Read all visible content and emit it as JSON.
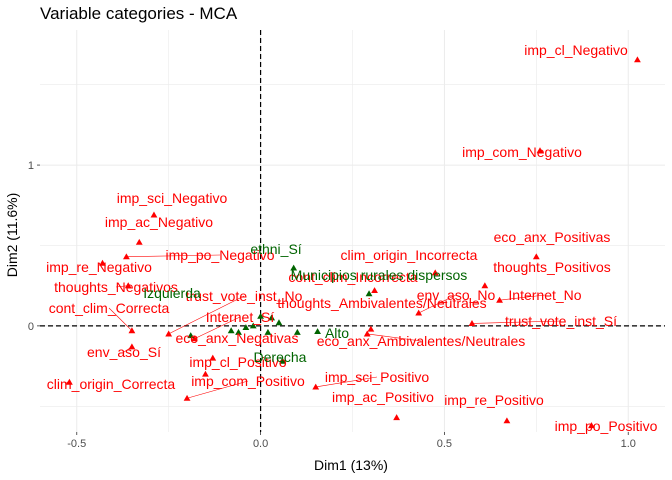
{
  "chart_data": {
    "type": "scatter",
    "title": "Variable categories - MCA",
    "xlabel": "Dim1 (13%)",
    "ylabel": "Dim2 (11.6%)",
    "xlim": [
      -0.6,
      1.1
    ],
    "ylim": [
      -0.66,
      1.84
    ],
    "x_ticks": [
      -0.5,
      0.0,
      0.5,
      1.0
    ],
    "x_tick_labels": [
      "-0.5",
      "0.0",
      "0.5",
      "1.0"
    ],
    "y_ticks": [
      0,
      1
    ],
    "y_tick_labels": [
      "0",
      "1"
    ],
    "grid": true,
    "reference_lines": {
      "x": 0,
      "y": 0
    },
    "colors": {
      "red": "#ff0000",
      "green": "#006400"
    },
    "points": [
      {
        "label": "imp_cl_Negativo",
        "x": 1.025,
        "y": 1.655,
        "color": "red"
      },
      {
        "label": "imp_com_Negativo",
        "x": 0.76,
        "y": 1.09,
        "color": "red"
      },
      {
        "label": "imp_sci_Negativo",
        "x": -0.29,
        "y": 0.69,
        "color": "red"
      },
      {
        "label": "imp_ac_Negativo",
        "x": -0.33,
        "y": 0.52,
        "color": "red"
      },
      {
        "label": "imp_po_Negativo",
        "x": -0.365,
        "y": 0.43,
        "color": "red"
      },
      {
        "label": "imp_re_Negativo",
        "x": -0.43,
        "y": 0.39,
        "color": "red"
      },
      {
        "label": "thoughts_Negativos",
        "x": -0.36,
        "y": 0.25,
        "color": "red"
      },
      {
        "label": "cont_clim_Correcta",
        "x": -0.35,
        "y": -0.03,
        "color": "red"
      },
      {
        "label": "env_aso_Sí",
        "x": -0.35,
        "y": -0.13,
        "color": "red"
      },
      {
        "label": "clim_origin_Correcta",
        "x": -0.52,
        "y": -0.35,
        "color": "red"
      },
      {
        "label": "trust_vote_inst_No",
        "x": -0.25,
        "y": -0.05,
        "color": "red"
      },
      {
        "label": "Internet_Sí",
        "x": -0.18,
        "y": -0.08,
        "color": "red"
      },
      {
        "label": "eco_anx_Negativas",
        "x": -0.13,
        "y": -0.2,
        "color": "red"
      },
      {
        "label": "imp_cl_Positivo",
        "x": -0.15,
        "y": -0.3,
        "color": "red"
      },
      {
        "label": "imp_com_Positivo",
        "x": -0.2,
        "y": -0.45,
        "color": "red"
      },
      {
        "label": "imp_sci_Positivo",
        "x": 0.15,
        "y": -0.38,
        "color": "red"
      },
      {
        "label": "imp_ac_Positivo",
        "x": 0.37,
        "y": -0.57,
        "color": "red"
      },
      {
        "label": "imp_re_Positivo",
        "x": 0.67,
        "y": -0.59,
        "color": "red"
      },
      {
        "label": "imp_po_Positivo",
        "x": 0.9,
        "y": -0.62,
        "color": "red"
      },
      {
        "label": "clim_origin_Incorrecta",
        "x": 0.475,
        "y": 0.33,
        "color": "red"
      },
      {
        "label": "cont_clim_Incorrecta",
        "x": 0.31,
        "y": 0.22,
        "color": "red"
      },
      {
        "label": "thoughts_Ambivalentes/Neutrales",
        "x": 0.3,
        "y": -0.02,
        "color": "red"
      },
      {
        "label": "eco_anx_Ambivalentes/Neutrales",
        "x": 0.29,
        "y": -0.05,
        "color": "red"
      },
      {
        "label": "env_aso_No",
        "x": 0.43,
        "y": 0.08,
        "color": "red"
      },
      {
        "label": "eco_anx_Positivas",
        "x": 0.75,
        "y": 0.43,
        "color": "red"
      },
      {
        "label": "thoughts_Positivos",
        "x": 0.61,
        "y": 0.25,
        "color": "red"
      },
      {
        "label": "Internet_No",
        "x": 0.65,
        "y": 0.16,
        "color": "red"
      },
      {
        "label": "trust_vote_inst_Sí",
        "x": 0.575,
        "y": 0.015,
        "color": "red"
      },
      {
        "label": "ethni_Sí",
        "x": 0.09,
        "y": 0.36,
        "color": "green"
      },
      {
        "label": "Municipios rurales dispersos",
        "x": 0.295,
        "y": 0.2,
        "color": "green"
      },
      {
        "label": "Izquierda",
        "x": -0.19,
        "y": -0.06,
        "color": "green"
      },
      {
        "label": "Alto",
        "x": 0.155,
        "y": -0.035,
        "color": "green"
      },
      {
        "label": "Derecha",
        "x": 0.06,
        "y": -0.22,
        "color": "green"
      },
      {
        "label": "",
        "x": -0.08,
        "y": -0.03,
        "color": "green"
      },
      {
        "label": "",
        "x": -0.04,
        "y": -0.01,
        "color": "green"
      },
      {
        "label": "",
        "x": 0.0,
        "y": 0.06,
        "color": "green"
      },
      {
        "label": "",
        "x": 0.02,
        "y": -0.04,
        "color": "green"
      },
      {
        "label": "",
        "x": 0.05,
        "y": 0.02,
        "color": "green"
      },
      {
        "label": "",
        "x": 0.1,
        "y": -0.04,
        "color": "green"
      },
      {
        "label": "",
        "x": -0.02,
        "y": 0.0,
        "color": "green"
      },
      {
        "label": "",
        "x": 0.03,
        "y": 0.05,
        "color": "green"
      },
      {
        "label": "",
        "x": -0.06,
        "y": -0.04,
        "color": "green"
      }
    ]
  }
}
